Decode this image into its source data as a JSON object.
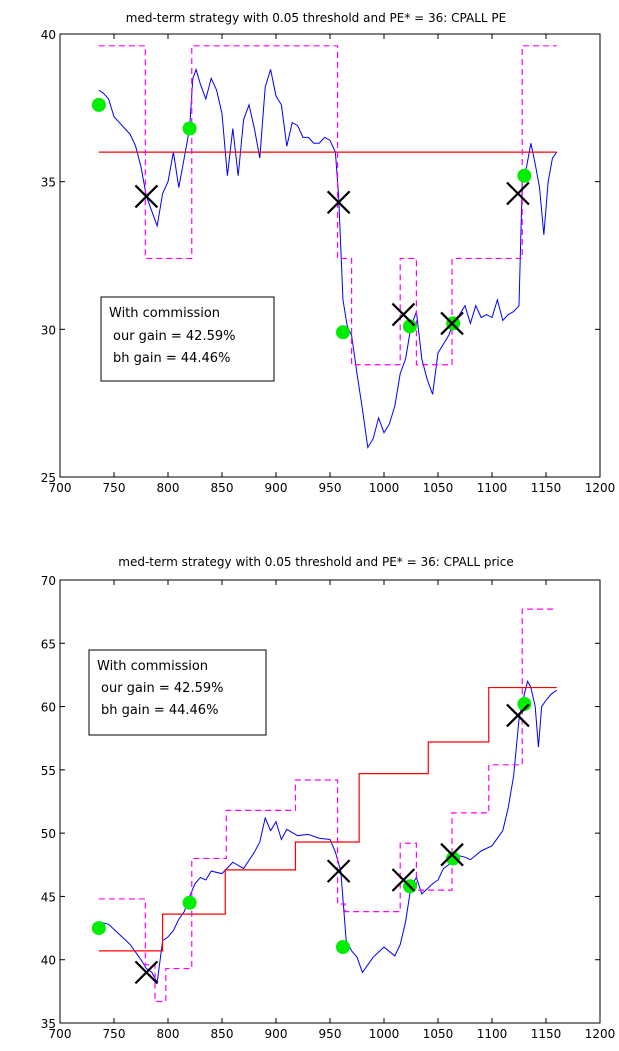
{
  "chart_data": [
    {
      "type": "line",
      "title": "med-term strategy with 0.05 threshold and PE* = 36: CPALL PE",
      "xlabel": "",
      "ylabel": "",
      "xlim": [
        700,
        1200
      ],
      "ylim": [
        25,
        40
      ],
      "xticks": [
        "700",
        "750",
        "800",
        "850",
        "900",
        "950",
        "1000",
        "1050",
        "1100",
        "1150",
        "1200"
      ],
      "yticks": [
        "25",
        "30",
        "35",
        "40"
      ],
      "grid": false,
      "colors": {
        "series": "#0000ff",
        "reference": "#ff0000",
        "band": "#ff00ff",
        "buy": "#00ee00",
        "sell": "#000000"
      },
      "annotation": [
        "With commission",
        "our gain = 42.59%",
        "bh gain = 44.46%"
      ],
      "series": [
        {
          "x": [
            736,
            740,
            745,
            750,
            755,
            760,
            765,
            770,
            775,
            780,
            785,
            790,
            795,
            800,
            805,
            810,
            815,
            820,
            823,
            826,
            830,
            835,
            840,
            845,
            850,
            855,
            860,
            865,
            870,
            875,
            880,
            885,
            890,
            895,
            900,
            905,
            910,
            915,
            920,
            925,
            930,
            935,
            940,
            945,
            950,
            955,
            958,
            962,
            966,
            970,
            975,
            980,
            985,
            990,
            995,
            1000,
            1005,
            1010,
            1015,
            1020,
            1025,
            1030,
            1035,
            1040,
            1045,
            1050,
            1055,
            1060,
            1065,
            1070,
            1075,
            1080,
            1085,
            1090,
            1095,
            1100,
            1105,
            1110,
            1115,
            1120,
            1125,
            1128,
            1132,
            1136,
            1140,
            1144,
            1148,
            1152,
            1156,
            1160
          ],
          "y": [
            38.1,
            38.0,
            37.8,
            37.2,
            37.0,
            36.8,
            36.6,
            36.2,
            35.5,
            34.5,
            34.0,
            33.5,
            34.6,
            35.0,
            36.0,
            34.8,
            35.8,
            36.8,
            38.5,
            38.8,
            38.3,
            37.8,
            38.5,
            38.1,
            37.3,
            35.2,
            36.8,
            35.2,
            37.1,
            37.6,
            36.8,
            35.8,
            38.2,
            38.8,
            37.9,
            37.6,
            36.2,
            37.0,
            36.9,
            36.5,
            36.5,
            36.3,
            36.3,
            36.5,
            36.4,
            36.0,
            34.5,
            31.0,
            30.1,
            29.8,
            28.5,
            27.3,
            26.0,
            26.3,
            27.0,
            26.5,
            26.8,
            27.4,
            28.5,
            29.0,
            30.1,
            30.6,
            29.0,
            28.3,
            27.8,
            29.2,
            29.5,
            29.8,
            30.3,
            30.5,
            30.8,
            30.2,
            30.8,
            30.4,
            30.5,
            30.4,
            31.0,
            30.3,
            30.5,
            30.6,
            30.8,
            35.0,
            35.5,
            36.3,
            35.6,
            34.8,
            33.2,
            35.0,
            35.8,
            36.0
          ]
        },
        {
          "x": [
            736,
            1160
          ],
          "y": [
            36.0,
            36.0
          ]
        },
        {
          "x": [
            736,
            779,
            779,
            822,
            822,
            957,
            957,
            970,
            970,
            1015,
            1015,
            1030,
            1030,
            1063,
            1063,
            1128,
            1128,
            1160
          ],
          "y": [
            39.6,
            39.6,
            32.4,
            32.4,
            39.6,
            39.6,
            32.4,
            32.4,
            28.8,
            28.8,
            32.4,
            32.4,
            28.8,
            28.8,
            32.4,
            32.4,
            39.6,
            39.6
          ]
        },
        {
          "x": [
            736,
            820,
            962,
            1024,
            1064,
            1130
          ],
          "y": [
            37.6,
            36.8,
            29.9,
            30.1,
            30.2,
            35.2
          ]
        },
        {
          "x": [
            780,
            958,
            1018,
            1063,
            1124
          ],
          "y": [
            34.5,
            34.3,
            30.5,
            30.2,
            34.6
          ]
        }
      ]
    },
    {
      "type": "line",
      "title": "med-term strategy with 0.05 threshold  and PE* = 36: CPALL price",
      "xlabel": "",
      "ylabel": "",
      "xlim": [
        700,
        1200
      ],
      "ylim": [
        35,
        70
      ],
      "xticks": [
        "700",
        "750",
        "800",
        "850",
        "900",
        "950",
        "1000",
        "1050",
        "1100",
        "1150",
        "1200"
      ],
      "yticks": [
        "35",
        "40",
        "45",
        "50",
        "55",
        "60",
        "65",
        "70"
      ],
      "grid": false,
      "colors": {
        "series": "#0000ff",
        "reference": "#ff0000",
        "band": "#ff00ff",
        "buy": "#00ee00",
        "sell": "#000000"
      },
      "annotation": [
        "With commission",
        "our gain = 42.59%",
        "bh gain = 44.46%"
      ],
      "series": [
        {
          "x": [
            736,
            745,
            755,
            765,
            775,
            780,
            785,
            790,
            795,
            800,
            805,
            810,
            815,
            820,
            825,
            830,
            835,
            840,
            850,
            860,
            870,
            880,
            885,
            890,
            895,
            900,
            905,
            910,
            920,
            930,
            940,
            950,
            955,
            960,
            965,
            970,
            975,
            980,
            990,
            1000,
            1010,
            1015,
            1020,
            1025,
            1030,
            1035,
            1040,
            1045,
            1050,
            1055,
            1060,
            1065,
            1070,
            1075,
            1080,
            1090,
            1100,
            1110,
            1115,
            1120,
            1125,
            1130,
            1133,
            1136,
            1140,
            1143,
            1146,
            1150,
            1155,
            1160
          ],
          "y": [
            43.0,
            42.8,
            42.0,
            41.2,
            40.0,
            39.3,
            39.0,
            38.2,
            41.5,
            41.8,
            42.3,
            43.2,
            43.8,
            45.0,
            46.0,
            46.5,
            46.3,
            47.0,
            46.8,
            47.7,
            47.2,
            48.5,
            49.3,
            51.2,
            50.2,
            50.9,
            49.5,
            50.3,
            49.8,
            49.9,
            49.6,
            49.5,
            48.5,
            47.0,
            41.5,
            40.7,
            40.2,
            39.0,
            40.2,
            41.0,
            40.3,
            41.2,
            43.0,
            45.8,
            46.5,
            45.2,
            45.6,
            46.0,
            46.3,
            47.2,
            47.5,
            48.0,
            48.2,
            48.1,
            47.9,
            48.6,
            49.0,
            50.2,
            52.0,
            54.5,
            59.0,
            61.0,
            62.0,
            61.5,
            60.0,
            56.8,
            60.0,
            60.5,
            61.0,
            61.3
          ]
        },
        {
          "x": [
            736,
            795,
            795,
            853,
            853,
            918,
            918,
            977,
            977,
            1041,
            1041,
            1097,
            1097,
            1160
          ],
          "y": [
            40.7,
            40.7,
            43.6,
            43.6,
            47.1,
            47.1,
            49.3,
            49.3,
            54.7,
            54.7,
            57.2,
            57.2,
            61.5,
            61.5
          ]
        },
        {
          "x": [
            736,
            779,
            779,
            788,
            788,
            798,
            798,
            822,
            822,
            854,
            854,
            918,
            918,
            957,
            957,
            964,
            964,
            1015,
            1015,
            1030,
            1030,
            1063,
            1063,
            1097,
            1097,
            1128,
            1128,
            1160
          ],
          "y": [
            44.8,
            44.8,
            39.6,
            39.6,
            36.7,
            36.7,
            39.3,
            39.3,
            48.0,
            48.0,
            51.8,
            51.8,
            54.2,
            54.2,
            44.4,
            44.4,
            43.8,
            43.8,
            49.2,
            49.2,
            45.5,
            45.5,
            51.6,
            51.6,
            55.4,
            55.4,
            67.7,
            67.7
          ]
        },
        {
          "x": [
            736,
            820,
            962,
            1024,
            1064,
            1130
          ],
          "y": [
            42.5,
            44.5,
            41.0,
            45.8,
            48.0,
            60.2
          ]
        },
        {
          "x": [
            780,
            958,
            1018,
            1063,
            1124
          ],
          "y": [
            39.0,
            47.0,
            46.3,
            48.3,
            59.3
          ]
        }
      ]
    }
  ]
}
